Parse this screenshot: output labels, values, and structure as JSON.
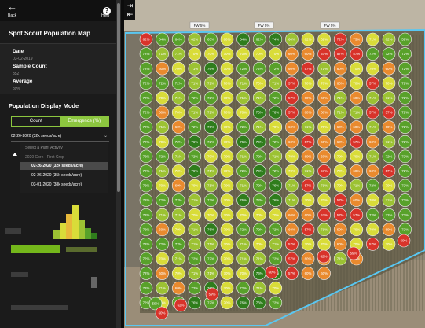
{
  "nav": {
    "back_label": "Back",
    "help_label": "Help"
  },
  "panel": {
    "title": "Spot Scout Population Map",
    "date_label": "Date",
    "date_value": "03-02-2019",
    "sample_count_label": "Sample Count",
    "sample_count_value": "352",
    "average_label": "Average",
    "average_value": "89%"
  },
  "display_mode": {
    "heading": "Population Display Mode",
    "options": [
      "Count",
      "Emergence (%)"
    ],
    "selected": "Emergence (%)"
  },
  "plant_activity": {
    "selected_value": "02-26-2020 (32k seeds/acre)",
    "hint": "Select a Plant Activity",
    "group_label": "2020 Corn - First Crop",
    "options": [
      "02-26-2020 (32k seeds/acre)",
      "02-26-2020 (35k seeds/acre)",
      "03-01-2020 (38k seeds/acre)"
    ],
    "selected_index": 0
  },
  "map": {
    "header_tags": [
      "FW 5%",
      "FW 5%",
      "FW 5%"
    ],
    "colors": {
      "dark_green": "#2f7d1c",
      "green": "#58a12a",
      "light_green": "#9cc233",
      "yellow": "#d9dc39",
      "orange": "#e98a2e",
      "red": "#d8332a",
      "accent": "#8cc63f",
      "field_boundary": "#59c7f2"
    },
    "top_row_values": [
      "62%",
      "64%",
      "64%",
      "62%",
      "63%",
      "60%",
      "64%",
      "62%",
      "74%",
      "60%",
      "62%",
      "62%",
      "72%",
      "73%",
      "71%",
      "62%",
      "59%"
    ],
    "bottom_row_values": [
      "59%",
      "60%",
      "62%"
    ]
  }
}
